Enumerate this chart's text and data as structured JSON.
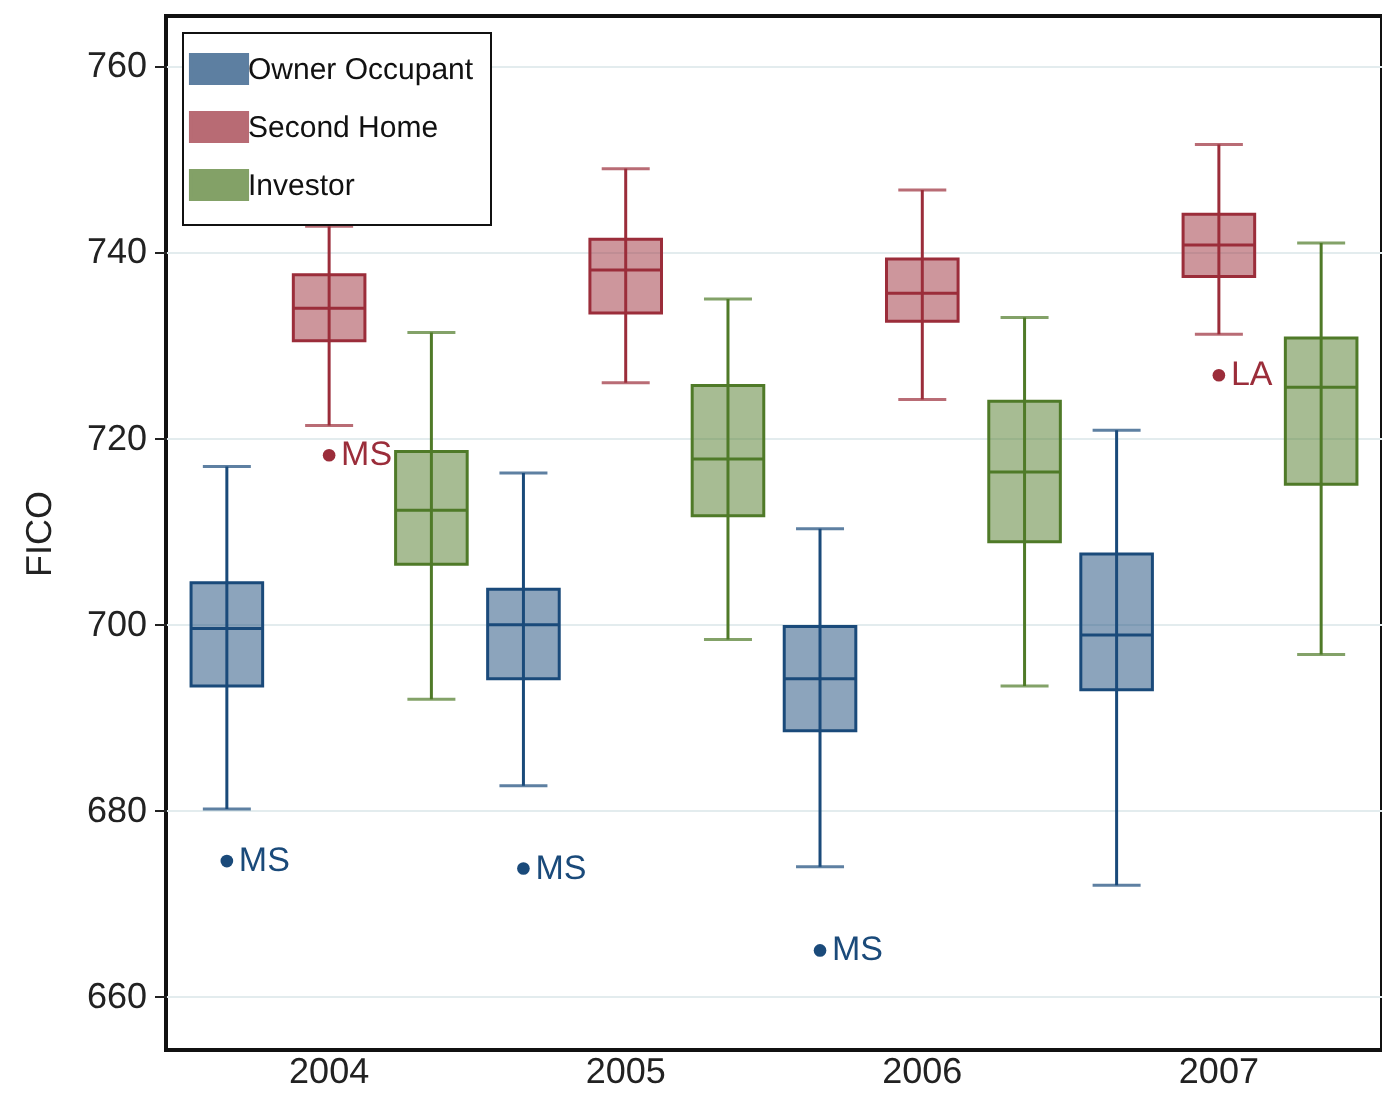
{
  "chart_data": {
    "type": "box",
    "ylabel": "FICO",
    "categories": [
      "2004",
      "2005",
      "2006",
      "2007"
    ],
    "ylim": [
      654.3,
      765.4
    ],
    "yticks": [
      660,
      680,
      700,
      720,
      740,
      760
    ],
    "grid": "y",
    "legend": "top left",
    "series": [
      {
        "name": "Owner Occupant",
        "color": "#1a4a7a",
        "boxes": [
          {
            "low": 680.2,
            "q1": 693.4,
            "median": 699.6,
            "q3": 704.5,
            "high": 717,
            "outliers": [
              674.6
            ]
          },
          {
            "low": 682.7,
            "q1": 694.2,
            "median": 700,
            "q3": 703.8,
            "high": 716.3,
            "outliers": [
              673.8
            ]
          },
          {
            "low": 674,
            "q1": 688.6,
            "median": 694.2,
            "q3": 699.8,
            "high": 710.3,
            "outliers": [
              665
            ]
          },
          {
            "low": 672,
            "q1": 693,
            "median": 698.9,
            "q3": 707.6,
            "high": 720.9
          }
        ]
      },
      {
        "name": "Second Home",
        "color": "#9b2d3a",
        "boxes": [
          {
            "low": 721.4,
            "q1": 730.5,
            "median": 734,
            "q3": 737.6,
            "high": 742.8,
            "outliers": [
              718.2
            ]
          },
          {
            "low": 726,
            "q1": 733.5,
            "median": 738.1,
            "q3": 741.4,
            "high": 749
          },
          {
            "low": 724.2,
            "q1": 732.6,
            "median": 735.6,
            "q3": 739.3,
            "high": 746.7
          },
          {
            "low": 731.2,
            "q1": 737.4,
            "median": 740.8,
            "q3": 744.1,
            "high": 751.6,
            "outliers": [
              726.8
            ]
          }
        ]
      },
      {
        "name": "Investor",
        "color": "#4f7a28",
        "boxes": [
          {
            "low": 692,
            "q1": 706.5,
            "median": 712.3,
            "q3": 718.6,
            "high": 731.4
          },
          {
            "low": 698.4,
            "q1": 711.7,
            "median": 717.8,
            "q3": 725.7,
            "high": 735
          },
          {
            "low": 693.4,
            "q1": 708.9,
            "median": 716.4,
            "q3": 724,
            "high": 733
          },
          {
            "low": 696.8,
            "q1": 715.1,
            "median": 725.5,
            "q3": 730.8,
            "high": 741
          }
        ]
      }
    ],
    "annotations": [
      "MS",
      "MS",
      "MS",
      "MS",
      "LA"
    ]
  }
}
